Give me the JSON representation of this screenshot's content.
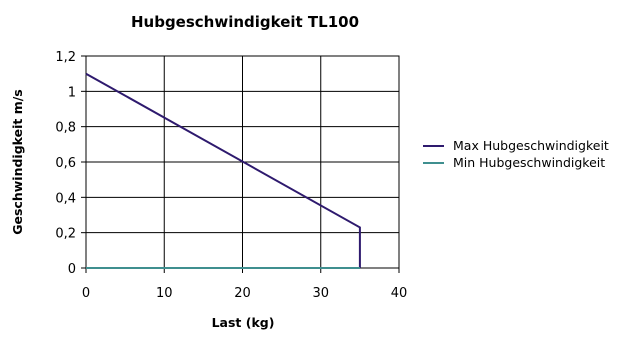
{
  "chart_data": {
    "type": "line",
    "title": "Hubgeschwindigkeit TL100",
    "xlabel": "Last (kg)",
    "ylabel": "Geschwindigkeit m/s",
    "xlim": [
      0,
      40
    ],
    "ylim": [
      0,
      1.2
    ],
    "x_ticks": [
      "0",
      "10",
      "20",
      "30",
      "40"
    ],
    "y_ticks": [
      "0",
      "0,2",
      "0,4",
      "0,6",
      "0,8",
      "1",
      "1,2"
    ],
    "grid": true,
    "legend_position": "right",
    "series": [
      {
        "name": "Max Hubgeschwindigkeit",
        "color": "#2e1a6e",
        "points": [
          [
            0,
            1.1
          ],
          [
            35,
            0.23
          ],
          [
            35,
            0
          ]
        ]
      },
      {
        "name": "Min Hubgeschwindigkeit",
        "color": "#3f8f8f",
        "points": [
          [
            0,
            0
          ],
          [
            35,
            0
          ]
        ]
      }
    ]
  }
}
